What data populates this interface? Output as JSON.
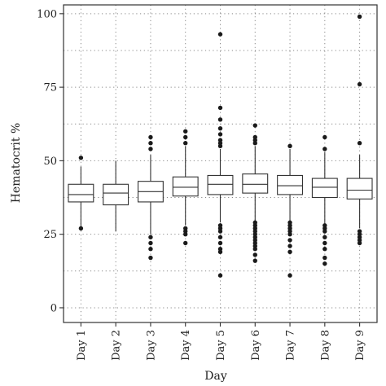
{
  "chart_data": {
    "type": "boxplot",
    "xlabel": "Day",
    "ylabel": "Hematocrit %",
    "ylim": [
      -5,
      103
    ],
    "yticks": [
      0,
      25,
      50,
      75,
      100
    ],
    "grid": true,
    "categories": [
      "Day 1",
      "Day 2",
      "Day 3",
      "Day 4",
      "Day 5",
      "Day 6",
      "Day 7",
      "Day 8",
      "Day 9"
    ],
    "boxes": [
      {
        "category": "Day 1",
        "whisker_low": 27,
        "q1": 36,
        "median": 38.5,
        "q3": 42,
        "whisker_high": 48,
        "outliers": [
          27,
          51
        ]
      },
      {
        "category": "Day 2",
        "whisker_low": 26,
        "q1": 35,
        "median": 39,
        "q3": 42,
        "whisker_high": 50,
        "outliers": []
      },
      {
        "category": "Day 3",
        "whisker_low": 25,
        "q1": 36,
        "median": 39.5,
        "q3": 43,
        "whisker_high": 52,
        "outliers": [
          17,
          20,
          22,
          24,
          54,
          56,
          58
        ]
      },
      {
        "category": "Day 4",
        "whisker_low": 28,
        "q1": 38,
        "median": 41,
        "q3": 44.5,
        "whisker_high": 55,
        "outliers": [
          22,
          25,
          26,
          27,
          56,
          58,
          60
        ]
      },
      {
        "category": "Day 5",
        "whisker_low": 29,
        "q1": 38.5,
        "median": 42,
        "q3": 45,
        "whisker_high": 54,
        "outliers": [
          11,
          19,
          20,
          22,
          24,
          26,
          27,
          28,
          55,
          56,
          57,
          59,
          61,
          64,
          68,
          93
        ]
      },
      {
        "category": "Day 6",
        "whisker_low": 29,
        "q1": 39,
        "median": 42,
        "q3": 45.5,
        "whisker_high": 55,
        "outliers": [
          16,
          18,
          20,
          21,
          22,
          23,
          24,
          25,
          26,
          27,
          28,
          29,
          56,
          57,
          58,
          62
        ]
      },
      {
        "category": "Day 7",
        "whisker_low": 29,
        "q1": 38.5,
        "median": 41.5,
        "q3": 45,
        "whisker_high": 54,
        "outliers": [
          11,
          19,
          21,
          23,
          25,
          26,
          27,
          28,
          29,
          55
        ]
      },
      {
        "category": "Day 8",
        "whisker_low": 28,
        "q1": 37.5,
        "median": 41,
        "q3": 44,
        "whisker_high": 53,
        "outliers": [
          15,
          17,
          20,
          22,
          24,
          26,
          27,
          28,
          54,
          58
        ]
      },
      {
        "category": "Day 9",
        "whisker_low": 27,
        "q1": 37,
        "median": 40,
        "q3": 44,
        "whisker_high": 52,
        "outliers": [
          22,
          23,
          24,
          25,
          26,
          56,
          76,
          99
        ]
      }
    ]
  }
}
